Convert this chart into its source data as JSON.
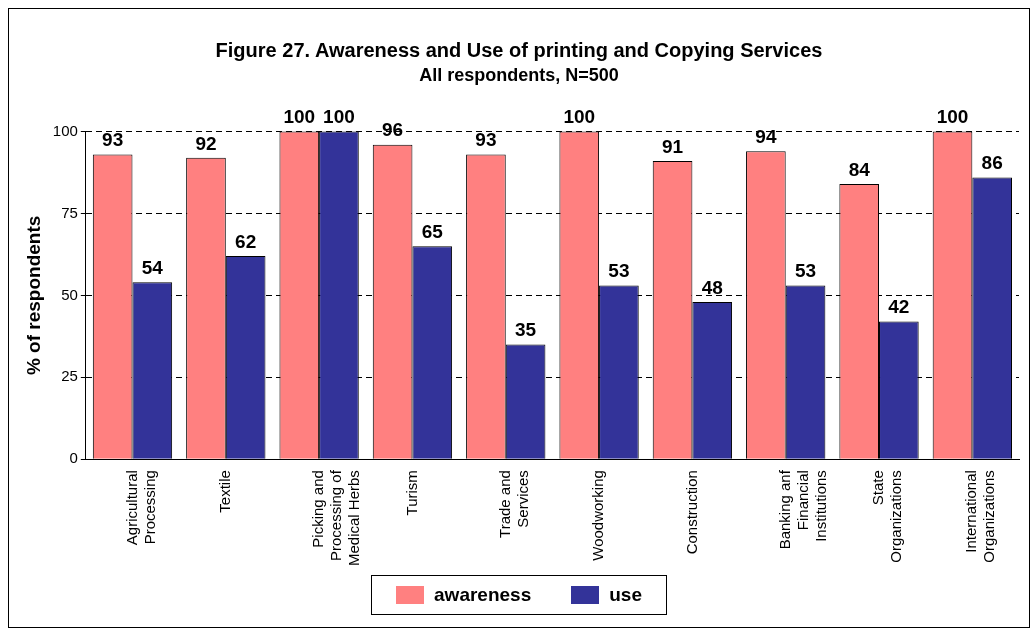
{
  "chart_data": {
    "type": "bar",
    "title": "Figure 27. Awareness and Use of printing and Copying Services",
    "subtitle": "All respondents, N=500",
    "ylabel": "% of respondents",
    "categories": [
      "Agricultural Processing",
      "Textile",
      "Picking and Processing of Medical Herbs",
      "Turism",
      "Trade and Services",
      "Woodworking",
      "Construction",
      "Banking anf Financial Institutions",
      "State Organizations",
      "International Organizations"
    ],
    "series": [
      {
        "name": "awareness",
        "color": "#ff8080",
        "values": [
          93,
          92,
          100,
          96,
          93,
          100,
          91,
          94,
          84,
          100
        ]
      },
      {
        "name": "use",
        "color": "#333399",
        "values": [
          54,
          62,
          100,
          65,
          35,
          53,
          48,
          53,
          42,
          86
        ]
      }
    ],
    "ylim": [
      0,
      100
    ],
    "yticks": [
      0,
      25,
      50,
      75,
      100
    ],
    "grid": "y",
    "legend": "bottom",
    "data_labels": true
  }
}
